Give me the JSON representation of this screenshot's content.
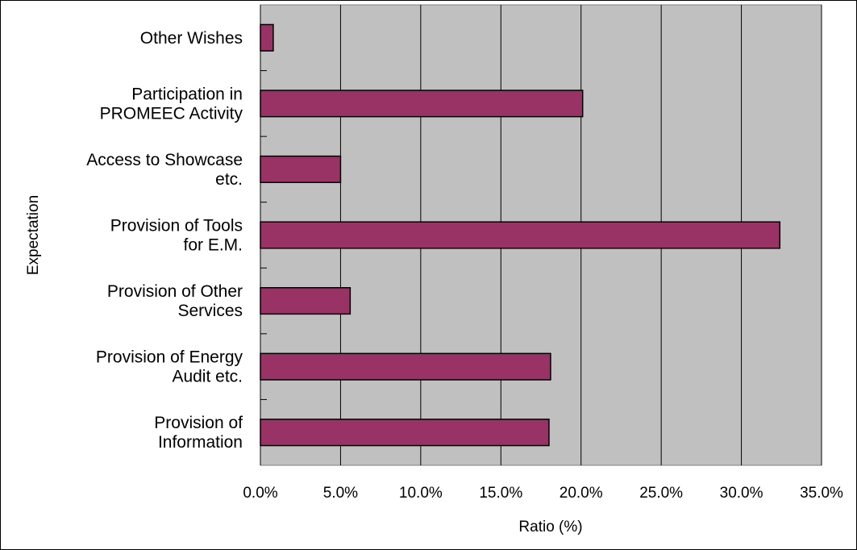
{
  "colors": {
    "plot_background": "#c0c0c0",
    "bar_fill": "#993366",
    "bar_stroke": "#000000",
    "gridline": "#000000"
  },
  "chart_data": {
    "type": "bar",
    "orientation": "horizontal",
    "categories": [
      "Other Wishes",
      "Participation in PROMEEC Activity",
      "Access to Showcase etc.",
      "Provision of Tools for E.M.",
      "Provision of Other Services",
      "Provision of Energy Audit etc.",
      "Provision of Information"
    ],
    "category_label_lines": [
      [
        "Other Wishes"
      ],
      [
        "Participation in",
        "PROMEEC Activity"
      ],
      [
        "Access to Showcase",
        "etc."
      ],
      [
        "Provision of Tools",
        "for E.M."
      ],
      [
        "Provision of Other",
        "Services"
      ],
      [
        "Provision of Energy",
        "Audit etc."
      ],
      [
        "Provision of",
        "Information"
      ]
    ],
    "values": [
      0.8,
      20.1,
      5.0,
      32.4,
      5.6,
      18.1,
      18.0
    ],
    "xlim": [
      0,
      35
    ],
    "xticks": [
      0,
      5,
      10,
      15,
      20,
      25,
      30,
      35
    ],
    "xtick_labels": [
      "0.0%",
      "5.0%",
      "10.0%",
      "15.0%",
      "20.0%",
      "25.0%",
      "30.0%",
      "35.0%"
    ],
    "xlabel": "Ratio (%)",
    "ylabel": "Expectation",
    "grid": "vertical",
    "legend": "none"
  }
}
